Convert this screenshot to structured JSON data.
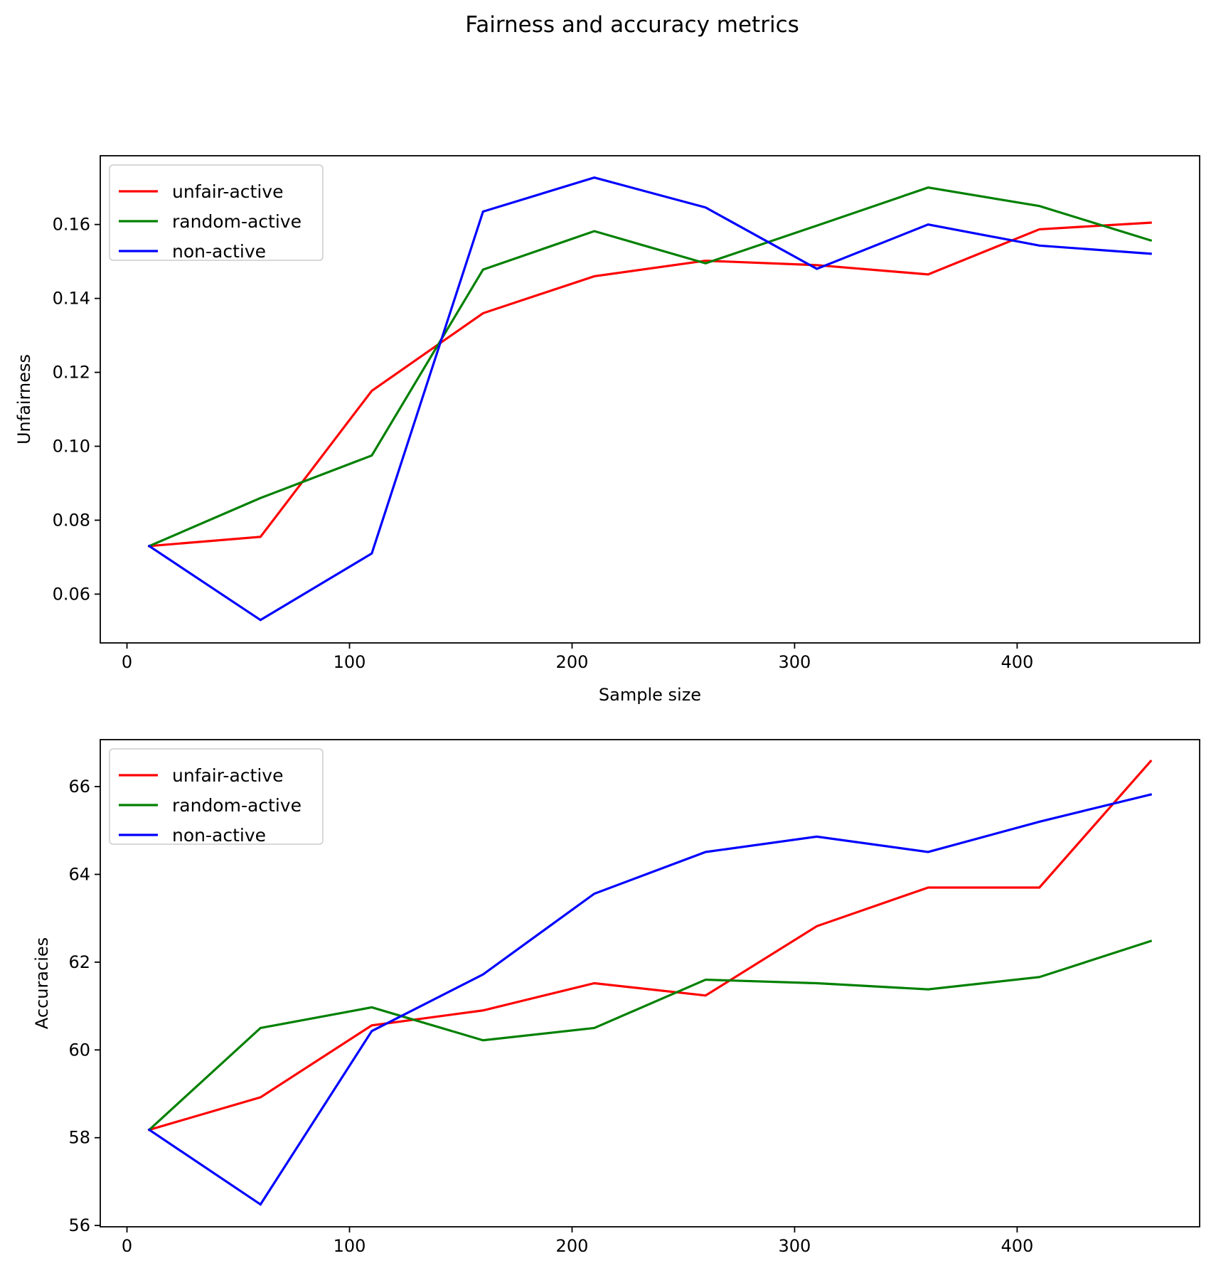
{
  "figure": {
    "suptitle": "Fairness and accuracy metrics"
  },
  "chart_data": [
    {
      "type": "line",
      "title": "",
      "xlabel": "Sample size",
      "ylabel": "Unfairness",
      "x": [
        10,
        60,
        110,
        160,
        210,
        260,
        310,
        360,
        410,
        460
      ],
      "xlim": [
        -12,
        482
      ],
      "ylim": [
        0.0468,
        0.1786
      ],
      "xticks": [
        0,
        100,
        200,
        300,
        400
      ],
      "yticks": [
        0.06,
        0.08,
        0.1,
        0.12,
        0.14,
        0.16
      ],
      "ytick_labels": [
        "0.06",
        "0.08",
        "0.10",
        "0.12",
        "0.14",
        "0.16"
      ],
      "grid": false,
      "legend_position": "upper-left",
      "series": [
        {
          "name": "unfair-active",
          "color": "#ff0000",
          "values": [
            0.073,
            0.0755,
            0.115,
            0.136,
            0.146,
            0.1502,
            0.149,
            0.1465,
            0.1587,
            0.1605
          ]
        },
        {
          "name": "random-active",
          "color": "#008000",
          "values": [
            0.073,
            0.086,
            0.0975,
            0.1478,
            0.1582,
            0.1495,
            0.1597,
            0.17,
            0.165,
            0.1557
          ]
        },
        {
          "name": "non-active",
          "color": "#0000ff",
          "values": [
            0.073,
            0.053,
            0.071,
            0.1635,
            0.1727,
            0.1646,
            0.148,
            0.16,
            0.1543,
            0.1521
          ]
        }
      ]
    },
    {
      "type": "line",
      "title": "",
      "xlabel": "",
      "ylabel": "Accuracies",
      "x": [
        10,
        60,
        110,
        160,
        210,
        260,
        310,
        360,
        410,
        460
      ],
      "xlim": [
        -12,
        482
      ],
      "ylim": [
        55.97,
        67.07
      ],
      "xticks": [
        0,
        100,
        200,
        300,
        400
      ],
      "yticks": [
        56,
        58,
        60,
        62,
        64,
        66
      ],
      "ytick_labels": [
        "56",
        "58",
        "60",
        "62",
        "64",
        "66"
      ],
      "grid": false,
      "legend_position": "upper-left",
      "series": [
        {
          "name": "unfair-active",
          "color": "#ff0000",
          "values": [
            58.18,
            58.92,
            60.56,
            60.9,
            61.52,
            61.24,
            62.82,
            63.7,
            63.7,
            66.58
          ]
        },
        {
          "name": "random-active",
          "color": "#008000",
          "values": [
            58.18,
            60.5,
            60.97,
            60.22,
            60.5,
            61.6,
            61.52,
            61.38,
            61.66,
            62.48
          ]
        },
        {
          "name": "non-active",
          "color": "#0000ff",
          "values": [
            58.18,
            56.48,
            60.43,
            61.72,
            63.56,
            64.51,
            64.86,
            64.51,
            65.2,
            65.82
          ]
        }
      ]
    }
  ]
}
